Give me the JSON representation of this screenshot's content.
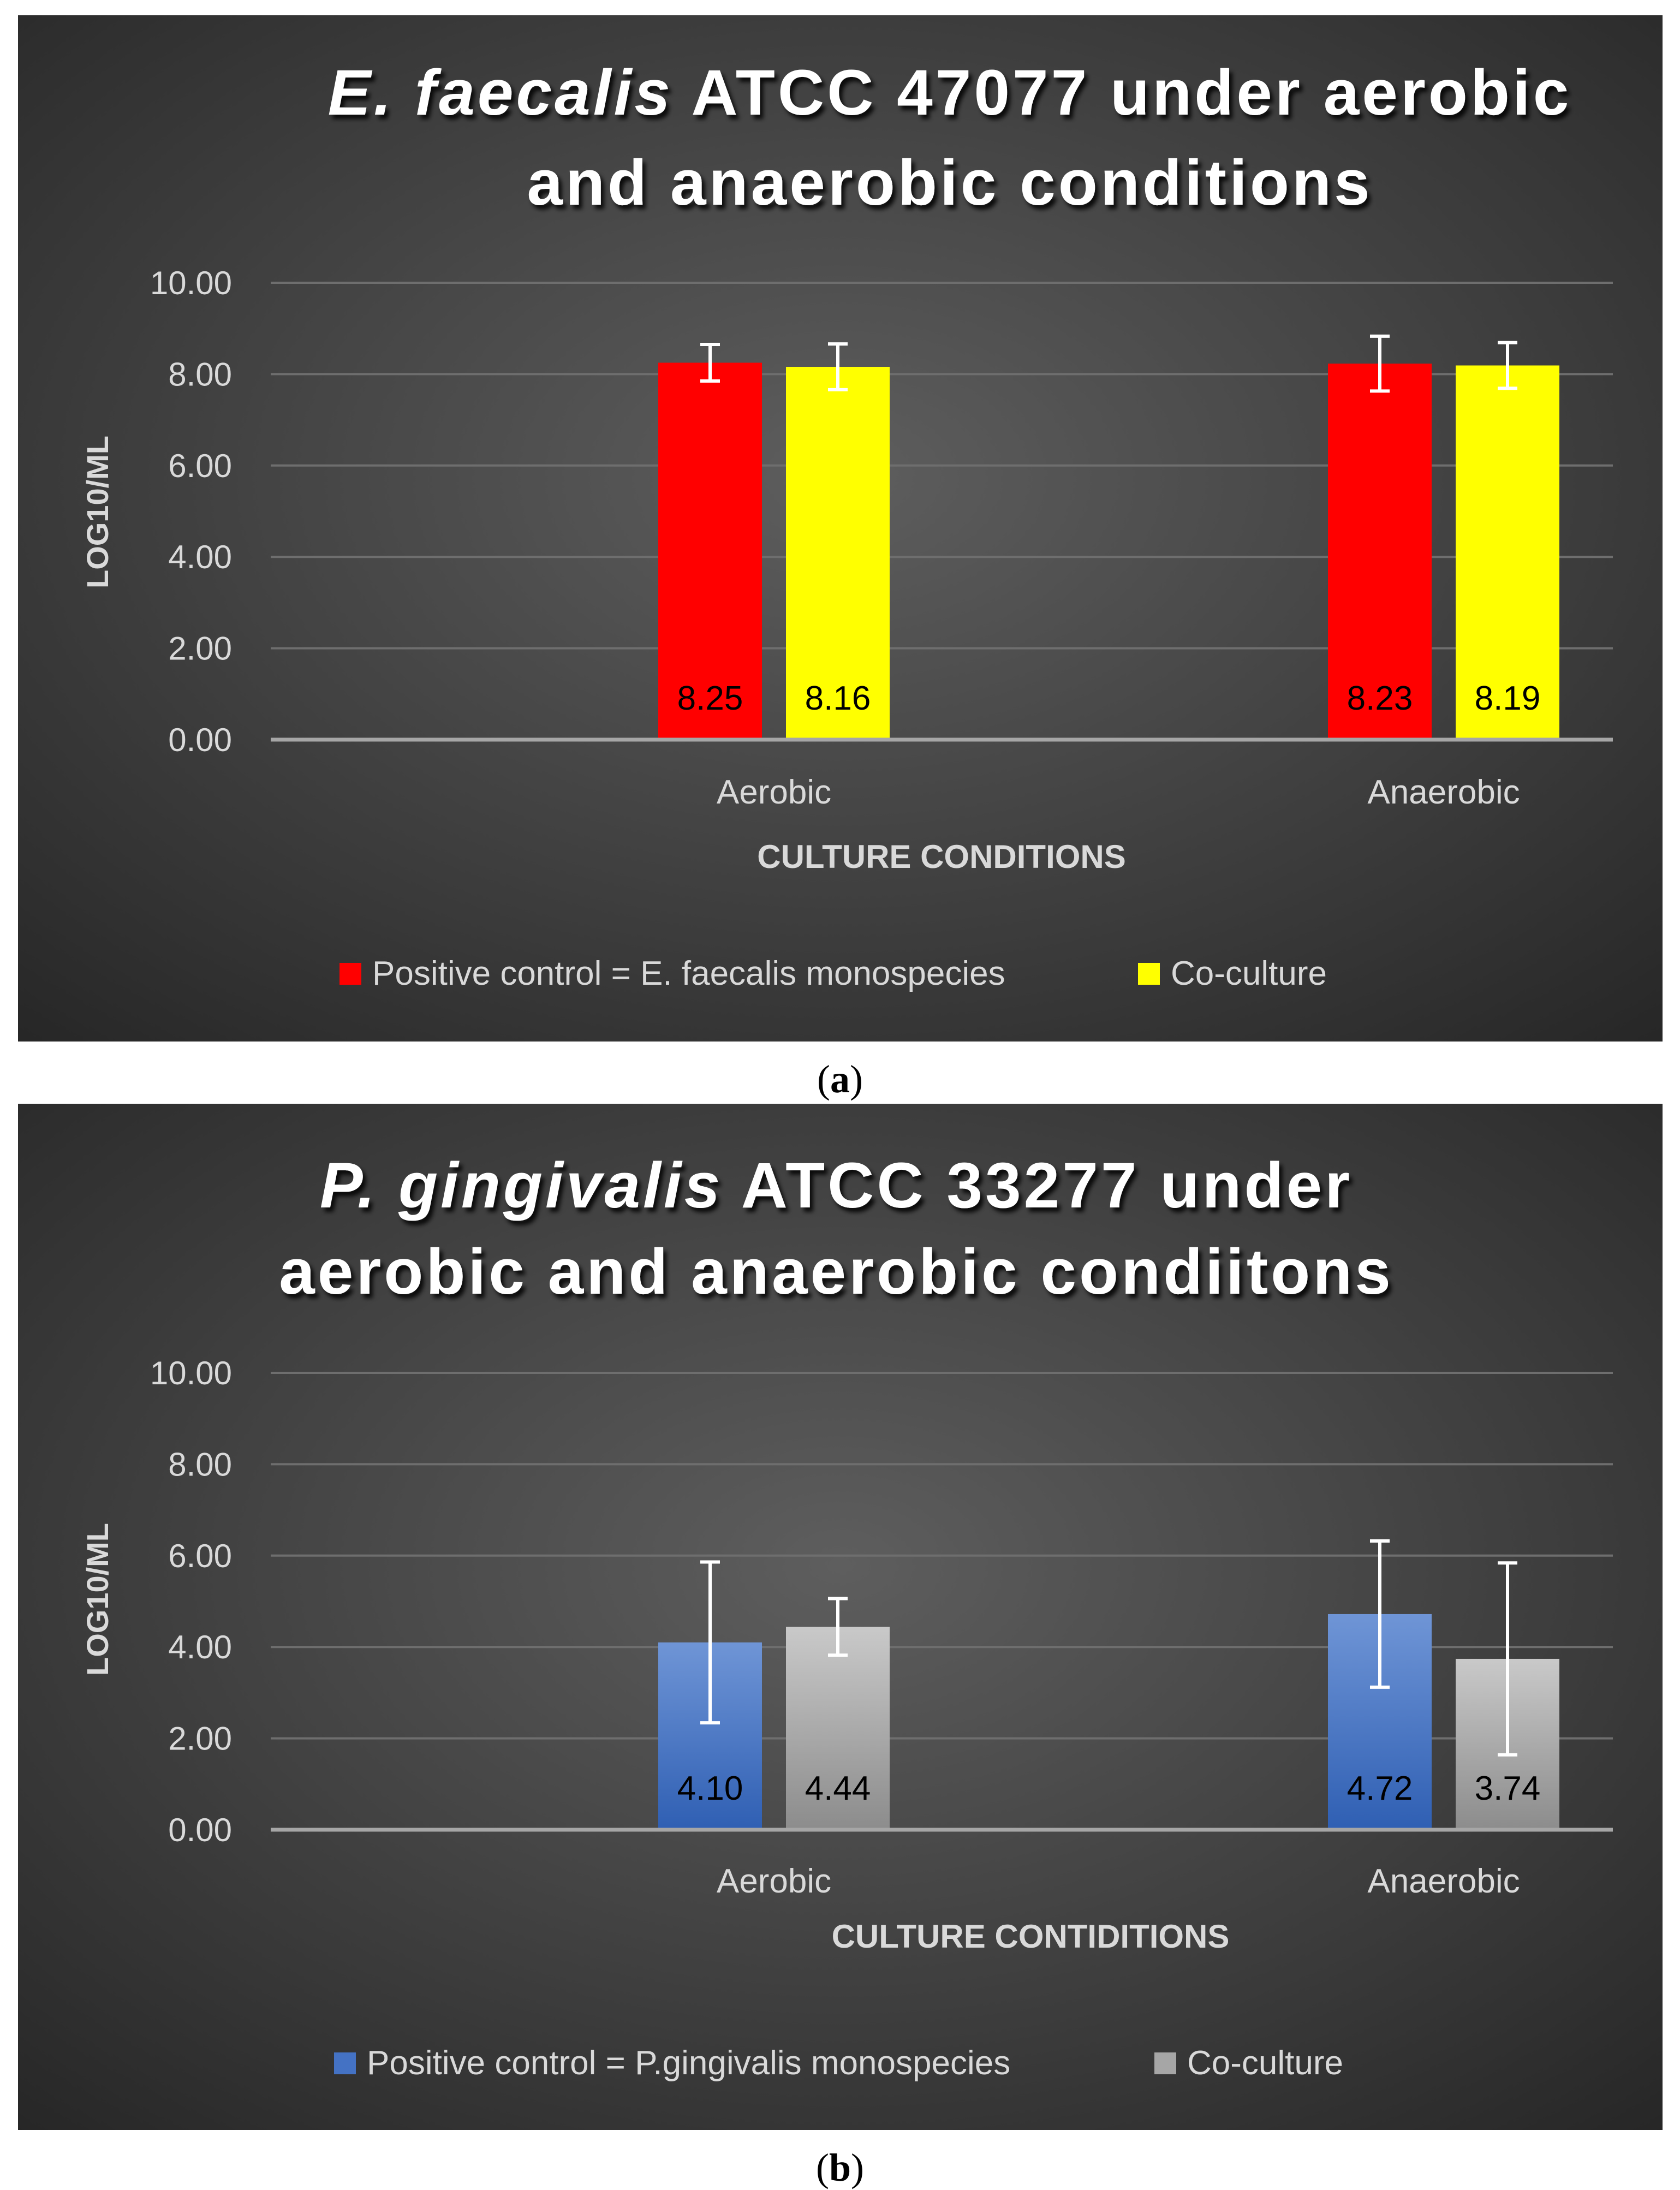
{
  "colors": {
    "red": "#ff0000",
    "yellow": "#ffff00",
    "blue": "#4472c4",
    "gray": "#a6a6a6",
    "panel_bg_center": "#595959",
    "panel_bg_edge": "#262626",
    "text_light": "#d9d9d9"
  },
  "chart_data": [
    {
      "panel_label": "a",
      "type": "bar",
      "title_italic": "E. faecalis",
      "title_rest_line1": " ATCC 47077 under aerobic",
      "title_line2": "and anaerobic conditions",
      "xlabel": "CULTURE CONDITIONS",
      "ylabel": "LOG10/ML",
      "ylim": [
        0,
        10
      ],
      "yticks": [
        "0.00",
        "2.00",
        "4.00",
        "6.00",
        "8.00",
        "10.00"
      ],
      "categories": [
        "Aerobic",
        "Anaerobic"
      ],
      "legend_position": "bottom",
      "series": [
        {
          "name": "Positive control = E. faecalis monospecies",
          "color": "#ff0000",
          "values": [
            8.25,
            8.23
          ],
          "labels": [
            "8.25",
            "8.23"
          ],
          "errors": [
            0.4,
            0.6
          ]
        },
        {
          "name": "Co-culture",
          "color": "#ffff00",
          "values": [
            8.16,
            8.19
          ],
          "labels": [
            "8.16",
            "8.19"
          ],
          "errors": [
            0.5,
            0.5
          ]
        }
      ]
    },
    {
      "panel_label": "b",
      "type": "bar",
      "title_italic": "P. gingivalis",
      "title_rest_line1": " ATCC 33277 under",
      "title_line2": "aerobic and anaerobic condiitons",
      "xlabel": "CULTURE CONTIDITIONS",
      "ylabel": "LOG10/ML",
      "ylim": [
        0,
        10
      ],
      "yticks": [
        "0.00",
        "2.00",
        "4.00",
        "6.00",
        "8.00",
        "10.00"
      ],
      "categories": [
        "Aerobic",
        "Anaerobic"
      ],
      "legend_position": "bottom",
      "series": [
        {
          "name": "Positive control = P.gingivalis monospecies",
          "color": "#4472c4",
          "values": [
            4.1,
            4.72
          ],
          "labels": [
            "4.10",
            "4.72"
          ],
          "errors": [
            1.76,
            1.6
          ]
        },
        {
          "name": "Co-culture",
          "color": "#a6a6a6",
          "values": [
            4.44,
            3.74
          ],
          "labels": [
            "4.44",
            "3.74"
          ],
          "errors": [
            0.62,
            2.1
          ]
        }
      ]
    }
  ]
}
